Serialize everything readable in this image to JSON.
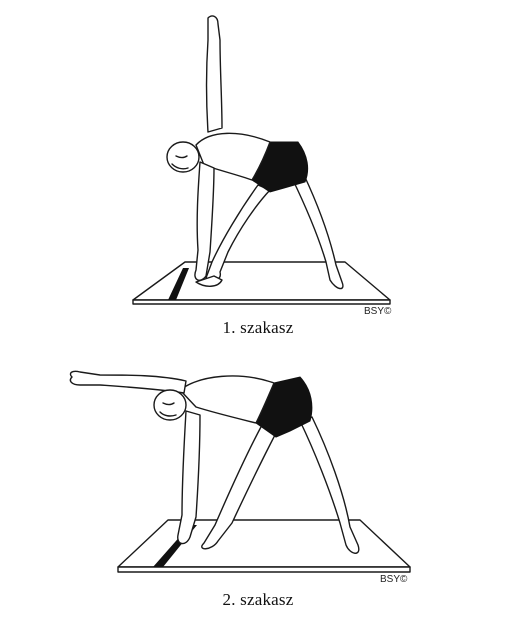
{
  "panels": [
    {
      "caption": "1. szakasz",
      "credit": "BSY©"
    },
    {
      "caption": "2. szakasz",
      "credit": "BSY©"
    }
  ],
  "colors": {
    "ink": "#1a1a1a",
    "shorts": "#111111",
    "background": "#ffffff"
  }
}
